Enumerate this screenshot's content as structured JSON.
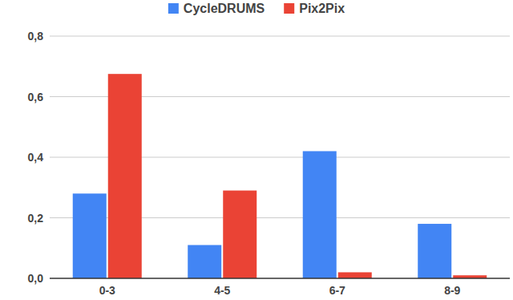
{
  "chart_data": {
    "type": "bar",
    "categories": [
      "0-3",
      "4-5",
      "6-7",
      "8-9"
    ],
    "series": [
      {
        "name": "CycleDRUMS",
        "color": "#4285f4",
        "values": [
          0.28,
          0.11,
          0.42,
          0.18
        ]
      },
      {
        "name": "Pix2Pix",
        "color": "#ea4335",
        "values": [
          0.675,
          0.29,
          0.02,
          0.01
        ]
      }
    ],
    "ylim": [
      0,
      0.8
    ],
    "yticks": [
      {
        "value": 0,
        "label": "0,0"
      },
      {
        "value": 0.2,
        "label": "0,2"
      },
      {
        "value": 0.4,
        "label": "0,4"
      },
      {
        "value": 0.6,
        "label": "0,6"
      },
      {
        "value": 0.8,
        "label": "0,8"
      }
    ],
    "grid": true,
    "legend": "top"
  }
}
